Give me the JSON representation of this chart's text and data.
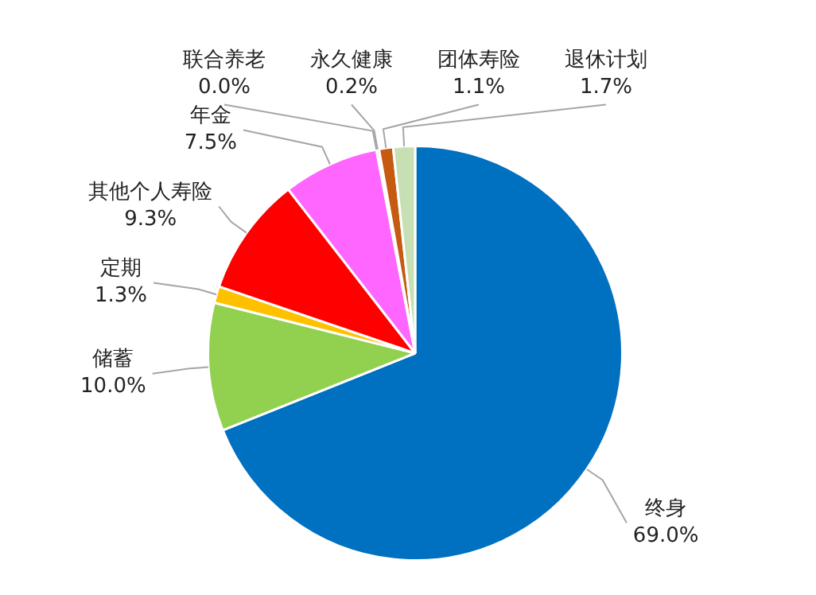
{
  "chart_data": {
    "type": "pie",
    "categories": [
      "终身",
      "储蓄",
      "定期",
      "其他个人寿险",
      "年金",
      "联合养老",
      "永久健康",
      "团体寿险",
      "退休计划"
    ],
    "values": [
      69.0,
      10.0,
      1.3,
      9.3,
      7.5,
      0.0,
      0.2,
      1.1,
      1.7
    ],
    "value_labels": [
      "69.0%",
      "10.0%",
      "1.3%",
      "9.3%",
      "7.5%",
      "0.0%",
      "0.2%",
      "1.1%",
      "1.7%"
    ],
    "colors": [
      "#0070c0",
      "#92d050",
      "#ffc000",
      "#ff0000",
      "#ff66ff",
      "#7030a0",
      "#c00000",
      "#c55a11",
      "#c6e0b4"
    ],
    "legend": false
  }
}
